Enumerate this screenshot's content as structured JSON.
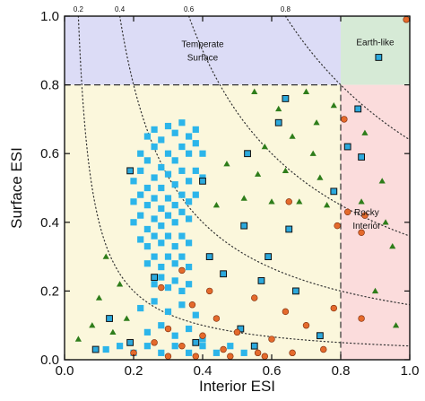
{
  "chart_data": {
    "type": "scatter",
    "title": "",
    "xlabel": "Interior ESI",
    "ylabel": "Surface ESI",
    "xlim": [
      0.0,
      1.0
    ],
    "ylim": [
      0.0,
      1.0
    ],
    "xticks": [
      "0.0",
      "0.2",
      "0.4",
      "0.6",
      "0.8",
      "1.0"
    ],
    "yticks": [
      "0.0",
      "0.2",
      "0.4",
      "0.6",
      "0.8",
      "1.0"
    ],
    "grid": false,
    "isolines": [
      {
        "label": "0.2",
        "value": 0.2
      },
      {
        "label": "0.4",
        "value": 0.4
      },
      {
        "label": "0.6",
        "value": 0.6
      },
      {
        "label": "0.8",
        "value": 0.8
      }
    ],
    "regions": [
      {
        "label_lines": [
          "Temperate",
          "Surface"
        ],
        "color": "#dcdcf6",
        "x": [
          0.0,
          0.8
        ],
        "y": [
          0.8,
          1.0
        ]
      },
      {
        "label_lines": [
          "Earth-like"
        ],
        "color": "#d6ead6",
        "x": [
          0.8,
          1.0
        ],
        "y": [
          0.8,
          1.0
        ]
      },
      {
        "label_lines": [
          "Rocky",
          "Interior"
        ],
        "color": "#fbdcdc",
        "x": [
          0.8,
          1.0
        ],
        "y": [
          0.0,
          0.8
        ]
      },
      {
        "label_lines": [],
        "color": "#fbf7dc",
        "x": [
          0.0,
          0.8
        ],
        "y": [
          0.0,
          0.8
        ]
      }
    ],
    "threshold_lines": {
      "x": 0.8,
      "y": 0.8
    },
    "colors": {
      "triangle": "#2e7d1a",
      "square_fill": "#2cb5ea",
      "square_outlined_fill": "#2ca9dd",
      "circle": "#e46a2c"
    },
    "series": [
      {
        "marker": "square",
        "points": [
          [
            0.24,
            0.65
          ],
          [
            0.26,
            0.67
          ],
          [
            0.28,
            0.64
          ],
          [
            0.3,
            0.68
          ],
          [
            0.32,
            0.66
          ],
          [
            0.34,
            0.69
          ],
          [
            0.36,
            0.65
          ],
          [
            0.38,
            0.67
          ],
          [
            0.22,
            0.6
          ],
          [
            0.24,
            0.58
          ],
          [
            0.26,
            0.62
          ],
          [
            0.28,
            0.56
          ],
          [
            0.3,
            0.6
          ],
          [
            0.32,
            0.58
          ],
          [
            0.34,
            0.62
          ],
          [
            0.36,
            0.6
          ],
          [
            0.38,
            0.63
          ],
          [
            0.4,
            0.6
          ],
          [
            0.2,
            0.52
          ],
          [
            0.22,
            0.55
          ],
          [
            0.24,
            0.5
          ],
          [
            0.26,
            0.53
          ],
          [
            0.28,
            0.5
          ],
          [
            0.3,
            0.54
          ],
          [
            0.32,
            0.51
          ],
          [
            0.34,
            0.55
          ],
          [
            0.36,
            0.52
          ],
          [
            0.38,
            0.55
          ],
          [
            0.4,
            0.53
          ],
          [
            0.2,
            0.46
          ],
          [
            0.22,
            0.48
          ],
          [
            0.24,
            0.45
          ],
          [
            0.26,
            0.47
          ],
          [
            0.28,
            0.44
          ],
          [
            0.3,
            0.47
          ],
          [
            0.32,
            0.45
          ],
          [
            0.34,
            0.48
          ],
          [
            0.36,
            0.46
          ],
          [
            0.38,
            0.48
          ],
          [
            0.2,
            0.4
          ],
          [
            0.22,
            0.42
          ],
          [
            0.24,
            0.38
          ],
          [
            0.26,
            0.41
          ],
          [
            0.28,
            0.39
          ],
          [
            0.3,
            0.42
          ],
          [
            0.32,
            0.4
          ],
          [
            0.34,
            0.43
          ],
          [
            0.36,
            0.41
          ],
          [
            0.22,
            0.35
          ],
          [
            0.24,
            0.33
          ],
          [
            0.26,
            0.36
          ],
          [
            0.28,
            0.34
          ],
          [
            0.3,
            0.36
          ],
          [
            0.32,
            0.33
          ],
          [
            0.34,
            0.36
          ],
          [
            0.36,
            0.34
          ],
          [
            0.24,
            0.28
          ],
          [
            0.26,
            0.3
          ],
          [
            0.28,
            0.27
          ],
          [
            0.3,
            0.3
          ],
          [
            0.32,
            0.28
          ],
          [
            0.34,
            0.3
          ],
          [
            0.36,
            0.27
          ],
          [
            0.26,
            0.22
          ],
          [
            0.28,
            0.24
          ],
          [
            0.3,
            0.21
          ],
          [
            0.32,
            0.23
          ],
          [
            0.34,
            0.2
          ],
          [
            0.36,
            0.22
          ],
          [
            0.22,
            0.15
          ],
          [
            0.26,
            0.17
          ],
          [
            0.3,
            0.14
          ],
          [
            0.34,
            0.16
          ],
          [
            0.38,
            0.13
          ],
          [
            0.24,
            0.08
          ],
          [
            0.28,
            0.1
          ],
          [
            0.32,
            0.07
          ],
          [
            0.36,
            0.09
          ],
          [
            0.4,
            0.06
          ],
          [
            0.12,
            0.03
          ],
          [
            0.16,
            0.04
          ],
          [
            0.2,
            0.02
          ],
          [
            0.24,
            0.04
          ],
          [
            0.28,
            0.02
          ],
          [
            0.32,
            0.04
          ],
          [
            0.36,
            0.02
          ],
          [
            0.4,
            0.04
          ],
          [
            0.44,
            0.02
          ],
          [
            0.48,
            0.04
          ],
          [
            0.52,
            0.02
          ]
        ]
      },
      {
        "marker": "square-outlined",
        "points": [
          [
            0.91,
            0.88
          ],
          [
            0.64,
            0.76
          ],
          [
            0.85,
            0.73
          ],
          [
            0.62,
            0.69
          ],
          [
            0.53,
            0.6
          ],
          [
            0.82,
            0.62
          ],
          [
            0.86,
            0.59
          ],
          [
            0.19,
            0.55
          ],
          [
            0.4,
            0.52
          ],
          [
            0.78,
            0.49
          ],
          [
            0.52,
            0.39
          ],
          [
            0.65,
            0.38
          ],
          [
            0.42,
            0.3
          ],
          [
            0.59,
            0.3
          ],
          [
            0.26,
            0.24
          ],
          [
            0.46,
            0.25
          ],
          [
            0.57,
            0.23
          ],
          [
            0.67,
            0.2
          ],
          [
            0.13,
            0.12
          ],
          [
            0.51,
            0.09
          ],
          [
            0.74,
            0.07
          ],
          [
            0.09,
            0.03
          ],
          [
            0.19,
            0.05
          ],
          [
            0.38,
            0.05
          ],
          [
            0.55,
            0.04
          ]
        ]
      },
      {
        "marker": "triangle",
        "points": [
          [
            0.55,
            0.78
          ],
          [
            0.62,
            0.73
          ],
          [
            0.7,
            0.78
          ],
          [
            0.78,
            0.74
          ],
          [
            0.66,
            0.65
          ],
          [
            0.73,
            0.69
          ],
          [
            0.58,
            0.62
          ],
          [
            0.72,
            0.6
          ],
          [
            0.47,
            0.57
          ],
          [
            0.56,
            0.54
          ],
          [
            0.64,
            0.55
          ],
          [
            0.74,
            0.53
          ],
          [
            0.76,
            0.45
          ],
          [
            0.68,
            0.46
          ],
          [
            0.6,
            0.46
          ],
          [
            0.52,
            0.47
          ],
          [
            0.44,
            0.45
          ],
          [
            0.86,
            0.46
          ],
          [
            0.93,
            0.4
          ],
          [
            0.95,
            0.33
          ],
          [
            0.9,
            0.2
          ],
          [
            0.96,
            0.1
          ],
          [
            0.92,
            0.52
          ],
          [
            0.87,
            0.66
          ],
          [
            0.12,
            0.3
          ],
          [
            0.16,
            0.22
          ],
          [
            0.1,
            0.18
          ],
          [
            0.14,
            0.08
          ],
          [
            0.18,
            0.12
          ],
          [
            0.08,
            0.1
          ],
          [
            0.04,
            0.06
          ]
        ]
      },
      {
        "marker": "circle",
        "points": [
          [
            0.99,
            0.99
          ],
          [
            0.81,
            0.7
          ],
          [
            0.65,
            0.46
          ],
          [
            0.82,
            0.43
          ],
          [
            0.87,
            0.42
          ],
          [
            0.79,
            0.39
          ],
          [
            0.86,
            0.37
          ],
          [
            0.34,
            0.26
          ],
          [
            0.28,
            0.21
          ],
          [
            0.42,
            0.2
          ],
          [
            0.55,
            0.18
          ],
          [
            0.37,
            0.16
          ],
          [
            0.64,
            0.14
          ],
          [
            0.44,
            0.12
          ],
          [
            0.7,
            0.1
          ],
          [
            0.3,
            0.09
          ],
          [
            0.5,
            0.08
          ],
          [
            0.4,
            0.07
          ],
          [
            0.6,
            0.06
          ],
          [
            0.26,
            0.05
          ],
          [
            0.34,
            0.04
          ],
          [
            0.46,
            0.03
          ],
          [
            0.56,
            0.02
          ],
          [
            0.2,
            0.02
          ],
          [
            0.3,
            0.01
          ],
          [
            0.38,
            0.01
          ],
          [
            0.48,
            0.01
          ],
          [
            0.58,
            0.01
          ],
          [
            0.66,
            0.02
          ],
          [
            0.78,
            0.15
          ],
          [
            0.75,
            0.03
          ],
          [
            0.86,
            0.12
          ]
        ]
      }
    ]
  }
}
